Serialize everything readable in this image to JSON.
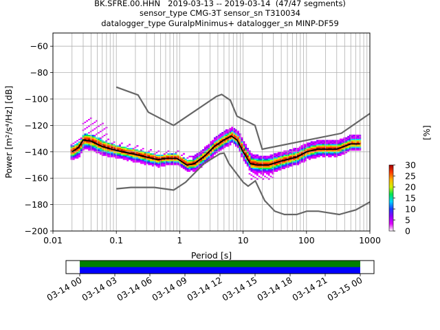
{
  "title_lines": [
    "BK.SFRE.00.HHN   2019-03-13 -- 2019-03-14  (47/47 segments)",
    "sensor_type CMG-3T sensor_sn T310034",
    "datalogger_type GuralpMinimus+ datalogger_sn MINP-DF59"
  ],
  "chart_data": {
    "type": "heatmap",
    "xlabel": "Period [s]",
    "ylabel": "Power [m²/s⁴/Hz] [dB]",
    "x_scale": "log",
    "xlim": [
      0.01,
      1000
    ],
    "ylim": [
      -200,
      -50
    ],
    "x_ticks": [
      {
        "value": 0.01,
        "label": "0.01"
      },
      {
        "value": 0.1,
        "label": "0.1"
      },
      {
        "value": 1,
        "label": "1"
      },
      {
        "value": 10,
        "label": "10"
      },
      {
        "value": 100,
        "label": "100"
      },
      {
        "value": 1000,
        "label": "1000"
      }
    ],
    "y_ticks": [
      -60,
      -80,
      -100,
      -120,
      -140,
      -160,
      -180,
      -200
    ],
    "grid": true,
    "noise_model_high": [
      [
        0.1,
        -91
      ],
      [
        0.22,
        -97
      ],
      [
        0.32,
        -110
      ],
      [
        0.8,
        -120
      ],
      [
        3.8,
        -98
      ],
      [
        4.6,
        -96.5
      ],
      [
        6.3,
        -101
      ],
      [
        8.0,
        -113
      ],
      [
        15.4,
        -120
      ],
      [
        20,
        -138
      ],
      [
        354,
        -126
      ],
      [
        1000,
        -111
      ]
    ],
    "noise_model_low": [
      [
        0.1,
        -168
      ],
      [
        0.17,
        -167
      ],
      [
        0.4,
        -167
      ],
      [
        0.8,
        -169
      ],
      [
        1.24,
        -163
      ],
      [
        2.4,
        -149
      ],
      [
        4.3,
        -141.5
      ],
      [
        5.0,
        -141
      ],
      [
        6.0,
        -149
      ],
      [
        10,
        -163
      ],
      [
        12,
        -166
      ],
      [
        15.6,
        -162
      ],
      [
        21.9,
        -177
      ],
      [
        31.6,
        -185
      ],
      [
        45,
        -187.5
      ],
      [
        70,
        -187.5
      ],
      [
        101,
        -185
      ],
      [
        154,
        -185
      ],
      [
        328,
        -187.5
      ],
      [
        600,
        -184
      ],
      [
        1000,
        -178
      ]
    ],
    "mean_curve": [
      [
        0.02,
        -140
      ],
      [
        0.025,
        -137
      ],
      [
        0.03,
        -131
      ],
      [
        0.04,
        -132
      ],
      [
        0.06,
        -136
      ],
      [
        0.1,
        -139
      ],
      [
        0.2,
        -142
      ],
      [
        0.3,
        -144
      ],
      [
        0.45,
        -146
      ],
      [
        0.6,
        -145
      ],
      [
        0.9,
        -145
      ],
      [
        1.3,
        -150
      ],
      [
        1.7,
        -149
      ],
      [
        2.5,
        -143
      ],
      [
        3.5,
        -136
      ],
      [
        5,
        -131
      ],
      [
        6.5,
        -128
      ],
      [
        8,
        -131
      ],
      [
        10,
        -140
      ],
      [
        13,
        -149
      ],
      [
        17,
        -150
      ],
      [
        25,
        -150
      ],
      [
        40,
        -147
      ],
      [
        70,
        -144
      ],
      [
        100,
        -140
      ],
      [
        150,
        -138
      ],
      [
        300,
        -138
      ],
      [
        500,
        -134
      ],
      [
        700,
        -134
      ]
    ],
    "percentile_band": [
      [
        0.02,
        -143,
        -138
      ],
      [
        0.03,
        -135,
        -129
      ],
      [
        0.05,
        -137,
        -131
      ],
      [
        0.1,
        -141,
        -137
      ],
      [
        0.3,
        -146,
        -142
      ],
      [
        0.5,
        -147,
        -144
      ],
      [
        1.3,
        -151,
        -148
      ],
      [
        2.5,
        -145,
        -141
      ],
      [
        5,
        -133,
        -129
      ],
      [
        7,
        -130,
        -126
      ],
      [
        10,
        -143,
        -137
      ],
      [
        15,
        -152,
        -147
      ],
      [
        30,
        -152,
        -147
      ],
      [
        100,
        -142,
        -138
      ],
      [
        300,
        -140,
        -136
      ],
      [
        700,
        -136,
        -132
      ]
    ],
    "colorbar": {
      "label": "[%]",
      "range": [
        0,
        30
      ],
      "ticks": [
        0,
        5,
        10,
        15,
        20,
        25,
        30
      ],
      "colors": [
        "#ffffff",
        "#e000ff",
        "#8c00ff",
        "#1e3cff",
        "#00d2ff",
        "#00e650",
        "#d4f000",
        "#ffb400",
        "#ff3c00",
        "#a00000"
      ]
    },
    "colors": {
      "noise_model": "#666666",
      "mean": "#000000"
    },
    "timeline": {
      "tick_labels": [
        "03-14 00",
        "03-14 03",
        "03-14 06",
        "03-14 09",
        "03-14 12",
        "03-14 15",
        "03-14 18",
        "03-14 21",
        "03-15 00"
      ],
      "start_hours": 0,
      "end_hours": 24,
      "bar_colors": {
        "top": "#008000",
        "bottom": "#0000ff"
      }
    }
  }
}
